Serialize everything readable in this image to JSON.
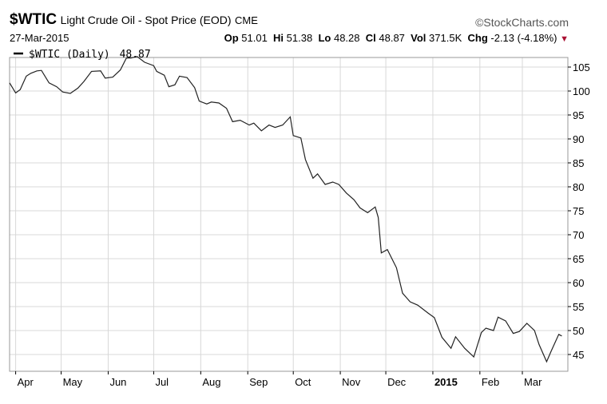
{
  "header": {
    "symbol": "$WTIC",
    "description": "Light Crude Oil - Spot Price (EOD)",
    "exchange": "CME",
    "brand": "©StockCharts.com",
    "date": "27-Mar-2015",
    "open_label": "Op",
    "open": "51.01",
    "high_label": "Hi",
    "high": "51.38",
    "low_label": "Lo",
    "low": "48.28",
    "close_label": "Cl",
    "close": "48.87",
    "volume_label": "Vol",
    "volume": "371.5K",
    "change_label": "Chg",
    "change": "-2.13 (-4.18%)",
    "change_arrow": "▼"
  },
  "legend": {
    "label": "$WTIC (Daily)",
    "value": "48.87"
  },
  "colors": {
    "line": "#222222",
    "grid": "#d8d8d8",
    "frame": "#999999",
    "down": "#aa1133"
  },
  "chart_data": {
    "type": "line",
    "title": "$WTIC Light Crude Oil - Spot Price (EOD)",
    "x_tick_labels": [
      "Apr",
      "May",
      "Jun",
      "Jul",
      "Aug",
      "Sep",
      "Oct",
      "Nov",
      "Dec",
      "2015",
      "Feb",
      "Mar"
    ],
    "y_ticks": [
      45,
      50,
      55,
      60,
      65,
      70,
      75,
      80,
      85,
      90,
      95,
      100,
      105
    ],
    "ylim": [
      41.5,
      107
    ],
    "grid": true,
    "legend_position": "top-left",
    "series": [
      {
        "name": "$WTIC (Daily)",
        "x": [
          "2014-03-28",
          "2014-04-01",
          "2014-04-04",
          "2014-04-08",
          "2014-04-11",
          "2014-04-15",
          "2014-04-18",
          "2014-04-23",
          "2014-04-28",
          "2014-05-02",
          "2014-05-07",
          "2014-05-12",
          "2014-05-16",
          "2014-05-21",
          "2014-05-27",
          "2014-05-30",
          "2014-06-04",
          "2014-06-09",
          "2014-06-13",
          "2014-06-16",
          "2014-06-20",
          "2014-06-25",
          "2014-07-01",
          "2014-07-03",
          "2014-07-08",
          "2014-07-11",
          "2014-07-15",
          "2014-07-18",
          "2014-07-23",
          "2014-07-28",
          "2014-07-31",
          "2014-08-05",
          "2014-08-08",
          "2014-08-13",
          "2014-08-18",
          "2014-08-22",
          "2014-08-27",
          "2014-09-02",
          "2014-09-05",
          "2014-09-10",
          "2014-09-15",
          "2014-09-19",
          "2014-09-24",
          "2014-09-29",
          "2014-10-01",
          "2014-10-06",
          "2014-10-09",
          "2014-10-14",
          "2014-10-17",
          "2014-10-22",
          "2014-10-27",
          "2014-10-31",
          "2014-11-05",
          "2014-11-10",
          "2014-11-14",
          "2014-11-19",
          "2014-11-24",
          "2014-11-26",
          "2014-11-28",
          "2014-12-02",
          "2014-12-08",
          "2014-12-12",
          "2014-12-17",
          "2014-12-22",
          "2014-12-29",
          "2015-01-02",
          "2015-01-07",
          "2015-01-13",
          "2015-01-16",
          "2015-01-22",
          "2015-01-28",
          "2015-02-02",
          "2015-02-05",
          "2015-02-10",
          "2015-02-13",
          "2015-02-18",
          "2015-02-23",
          "2015-02-27",
          "2015-03-04",
          "2015-03-09",
          "2015-03-12",
          "2015-03-17",
          "2015-03-20",
          "2015-03-25",
          "2015-03-27"
        ],
        "y": [
          101.7,
          99.6,
          100.3,
          103.1,
          103.7,
          104.2,
          104.3,
          101.7,
          100.9,
          99.8,
          99.5,
          100.6,
          102.0,
          104.1,
          104.2,
          102.7,
          102.9,
          104.4,
          106.9,
          106.9,
          107.2,
          106.0,
          105.3,
          104.1,
          103.3,
          100.9,
          101.3,
          103.1,
          102.8,
          100.7,
          97.9,
          97.3,
          97.7,
          97.5,
          96.4,
          93.6,
          93.9,
          92.9,
          93.3,
          91.7,
          92.9,
          92.4,
          92.9,
          94.6,
          90.7,
          90.2,
          85.7,
          81.8,
          82.7,
          80.5,
          81.0,
          80.5,
          78.7,
          77.3,
          75.6,
          74.6,
          75.8,
          73.6,
          66.2,
          66.9,
          63.1,
          57.8,
          56.0,
          55.3,
          53.6,
          52.7,
          48.6,
          46.3,
          48.7,
          46.3,
          44.5,
          49.6,
          50.5,
          50.0,
          52.8,
          52.0,
          49.4,
          49.8,
          51.5,
          50.0,
          47.1,
          43.5,
          45.7,
          49.2,
          48.87
        ]
      }
    ]
  }
}
